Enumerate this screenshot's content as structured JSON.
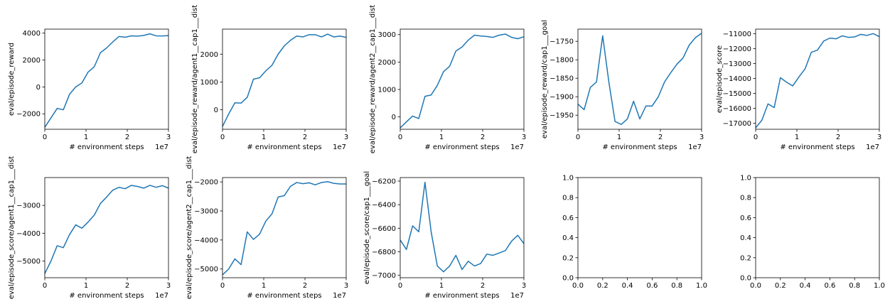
{
  "chart_data": [
    {
      "type": "line",
      "xlabel": "# environment steps",
      "ylabel": "eval/episode_reward",
      "x_offset_label": "1e7",
      "xlim": [
        0,
        3
      ],
      "ylim": [
        -3150,
        4300
      ],
      "xticks": [
        0,
        1,
        2,
        3
      ],
      "yticks": [
        -2000,
        0,
        2000,
        4000
      ],
      "ytick_labels": [
        "−2000",
        "0",
        "2000",
        "4000"
      ],
      "x": [
        0,
        0.15,
        0.3,
        0.45,
        0.6,
        0.75,
        0.9,
        1.05,
        1.2,
        1.35,
        1.5,
        1.65,
        1.8,
        1.95,
        2.1,
        2.25,
        2.4,
        2.55,
        2.7,
        2.85,
        3.0
      ],
      "values": [
        -3000,
        -2300,
        -1600,
        -1700,
        -550,
        0,
        300,
        1100,
        1500,
        2550,
        2900,
        3350,
        3750,
        3700,
        3800,
        3780,
        3830,
        3950,
        3800,
        3790,
        3820
      ]
    },
    {
      "type": "line",
      "xlabel": "# environment steps",
      "ylabel": "eval/episode_reward/agent1__cap1___dist",
      "x_offset_label": "1e7",
      "xlim": [
        0,
        3
      ],
      "ylim": [
        -700,
        2900
      ],
      "xticks": [
        0,
        1,
        2,
        3
      ],
      "yticks": [
        0,
        1000,
        2000
      ],
      "ytick_labels": [
        "0",
        "1000",
        "2000"
      ],
      "x": [
        0,
        0.15,
        0.3,
        0.45,
        0.6,
        0.75,
        0.9,
        1.05,
        1.2,
        1.35,
        1.5,
        1.65,
        1.8,
        1.95,
        2.1,
        2.25,
        2.4,
        2.55,
        2.7,
        2.85,
        3.0
      ],
      "values": [
        -600,
        -150,
        250,
        240,
        450,
        1100,
        1150,
        1400,
        1600,
        2000,
        2300,
        2500,
        2650,
        2620,
        2700,
        2700,
        2620,
        2720,
        2620,
        2650,
        2600
      ]
    },
    {
      "type": "line",
      "xlabel": "# environment steps",
      "ylabel": "eval/episode_reward/agent2__cap1___dist",
      "x_offset_label": "1e7",
      "xlim": [
        0,
        3
      ],
      "ylim": [
        -450,
        3200
      ],
      "xticks": [
        0,
        1,
        2,
        3
      ],
      "yticks": [
        0,
        1000,
        2000,
        3000
      ],
      "ytick_labels": [
        "0",
        "1000",
        "2000",
        "3000"
      ],
      "x": [
        0,
        0.15,
        0.3,
        0.45,
        0.6,
        0.75,
        0.9,
        1.05,
        1.2,
        1.35,
        1.5,
        1.65,
        1.8,
        1.95,
        2.1,
        2.25,
        2.4,
        2.55,
        2.7,
        2.85,
        3.0
      ],
      "values": [
        -400,
        -180,
        30,
        -60,
        750,
        800,
        1150,
        1650,
        1850,
        2400,
        2550,
        2800,
        2980,
        2950,
        2930,
        2900,
        2980,
        3020,
        2900,
        2850,
        2920
      ]
    },
    {
      "type": "line",
      "xlabel": "# environment steps",
      "ylabel": "eval/episode_reward/cap1___goal",
      "x_offset_label": "1e7",
      "xlim": [
        0,
        3
      ],
      "ylim": [
        -1988,
        -1717
      ],
      "xticks": [
        0,
        1,
        2,
        3
      ],
      "yticks": [
        -1950,
        -1900,
        -1850,
        -1800,
        -1750
      ],
      "ytick_labels": [
        "−1950",
        "−1900",
        "−1850",
        "−1800",
        "−1750"
      ],
      "x": [
        0,
        0.15,
        0.3,
        0.45,
        0.6,
        0.75,
        0.9,
        1.05,
        1.2,
        1.35,
        1.5,
        1.65,
        1.8,
        1.95,
        2.1,
        2.25,
        2.4,
        2.55,
        2.7,
        2.85,
        3.0
      ],
      "values": [
        -1920,
        -1935,
        -1875,
        -1860,
        -1735,
        -1860,
        -1967,
        -1975,
        -1960,
        -1912,
        -1960,
        -1925,
        -1925,
        -1900,
        -1860,
        -1835,
        -1812,
        -1795,
        -1760,
        -1740,
        -1728
      ]
    },
    {
      "type": "line",
      "xlabel": "# environment steps",
      "ylabel": "eval/episode_score",
      "x_offset_label": "1e7",
      "xlim": [
        0,
        3
      ],
      "ylim": [
        -17400,
        -10700
      ],
      "xticks": [
        0,
        1,
        2,
        3
      ],
      "yticks": [
        -17000,
        -16000,
        -15000,
        -14000,
        -13000,
        -12000,
        -11000
      ],
      "ytick_labels": [
        "−17000",
        "−16000",
        "−15000",
        "−14000",
        "−13000",
        "−12000",
        "−11000"
      ],
      "x": [
        0,
        0.15,
        0.3,
        0.45,
        0.6,
        0.75,
        0.9,
        1.05,
        1.2,
        1.35,
        1.5,
        1.65,
        1.8,
        1.95,
        2.1,
        2.25,
        2.4,
        2.55,
        2.7,
        2.85,
        3.0
      ],
      "values": [
        -17300,
        -16800,
        -15700,
        -15950,
        -13950,
        -14250,
        -14500,
        -13900,
        -13350,
        -12250,
        -12100,
        -11500,
        -11300,
        -11350,
        -11150,
        -11250,
        -11220,
        -11050,
        -11120,
        -11000,
        -11200
      ]
    },
    {
      "type": "line",
      "xlabel": "# environment steps",
      "ylabel": "eval/episode_score/agent1__cap1___dist",
      "x_offset_label": "1e7",
      "xlim": [
        0,
        3
      ],
      "ylim": [
        -5600,
        -2000
      ],
      "xticks": [
        0,
        1,
        2,
        3
      ],
      "yticks": [
        -5000,
        -4000,
        -3000
      ],
      "ytick_labels": [
        "−5000",
        "−4000",
        "−3000"
      ],
      "x": [
        0,
        0.15,
        0.3,
        0.45,
        0.6,
        0.75,
        0.9,
        1.05,
        1.2,
        1.35,
        1.5,
        1.65,
        1.8,
        1.95,
        2.1,
        2.25,
        2.4,
        2.55,
        2.7,
        2.85,
        3.0
      ],
      "values": [
        -5450,
        -5000,
        -4450,
        -4520,
        -4050,
        -3700,
        -3820,
        -3600,
        -3350,
        -2930,
        -2700,
        -2450,
        -2350,
        -2400,
        -2280,
        -2320,
        -2380,
        -2280,
        -2350,
        -2290,
        -2380
      ]
    },
    {
      "type": "line",
      "xlabel": "# environment steps",
      "ylabel": "eval/episode_score/agent2__cap1___dist",
      "x_offset_label": "1e7",
      "xlim": [
        0,
        3
      ],
      "ylim": [
        -5300,
        -1850
      ],
      "xticks": [
        0,
        1,
        2,
        3
      ],
      "yticks": [
        -5000,
        -4000,
        -3000,
        -2000
      ],
      "ytick_labels": [
        "−5000",
        "−4000",
        "−3000",
        "−2000"
      ],
      "x": [
        0,
        0.15,
        0.3,
        0.45,
        0.6,
        0.75,
        0.9,
        1.05,
        1.2,
        1.35,
        1.5,
        1.65,
        1.8,
        1.95,
        2.1,
        2.25,
        2.4,
        2.55,
        2.7,
        2.85,
        3.0
      ],
      "values": [
        -5200,
        -5000,
        -4650,
        -4850,
        -3720,
        -3980,
        -3800,
        -3350,
        -3100,
        -2520,
        -2470,
        -2150,
        -2020,
        -2060,
        -2030,
        -2100,
        -2020,
        -1990,
        -2050,
        -2070,
        -2070
      ]
    },
    {
      "type": "line",
      "xlabel": "# environment steps",
      "ylabel": "eval/episode_score/cap1___goal",
      "x_offset_label": "1e7",
      "xlim": [
        0,
        3
      ],
      "ylim": [
        -7020,
        -6170
      ],
      "xticks": [
        0,
        1,
        2,
        3
      ],
      "yticks": [
        -7000,
        -6800,
        -6600,
        -6400,
        -6200
      ],
      "ytick_labels": [
        "−7000",
        "−6800",
        "−6600",
        "−6400",
        "−6200"
      ],
      "x": [
        0,
        0.15,
        0.3,
        0.45,
        0.6,
        0.75,
        0.9,
        1.05,
        1.2,
        1.35,
        1.5,
        1.65,
        1.8,
        1.95,
        2.1,
        2.25,
        2.4,
        2.55,
        2.7,
        2.85,
        3.0
      ],
      "values": [
        -6700,
        -6780,
        -6580,
        -6630,
        -6210,
        -6630,
        -6920,
        -6970,
        -6920,
        -6830,
        -6950,
        -6880,
        -6920,
        -6900,
        -6820,
        -6830,
        -6810,
        -6790,
        -6710,
        -6660,
        -6730
      ]
    },
    {
      "type": "line",
      "empty": true,
      "xlim": [
        0,
        1
      ],
      "ylim": [
        0,
        1
      ],
      "xticks": [
        0,
        0.2,
        0.4,
        0.6,
        0.8,
        1.0
      ],
      "yticks": [
        0,
        0.2,
        0.4,
        0.6,
        0.8,
        1.0
      ],
      "xtick_labels": [
        "0.0",
        "0.2",
        "0.4",
        "0.6",
        "0.8",
        "1.0"
      ],
      "ytick_labels": [
        "0.0",
        "0.2",
        "0.4",
        "0.6",
        "0.8",
        "1.0"
      ]
    },
    {
      "type": "line",
      "empty": true,
      "xlim": [
        0,
        1
      ],
      "ylim": [
        0,
        1
      ],
      "xticks": [
        0,
        0.2,
        0.4,
        0.6,
        0.8,
        1.0
      ],
      "yticks": [
        0,
        0.2,
        0.4,
        0.6,
        0.8,
        1.0
      ],
      "xtick_labels": [
        "0.0",
        "0.2",
        "0.4",
        "0.6",
        "0.8",
        "1.0"
      ],
      "ytick_labels": [
        "0.0",
        "0.2",
        "0.4",
        "0.6",
        "0.8",
        "1.0"
      ]
    }
  ],
  "colors": {
    "line": "#1f77b4",
    "axis": "#000000",
    "background": "#ffffff"
  }
}
